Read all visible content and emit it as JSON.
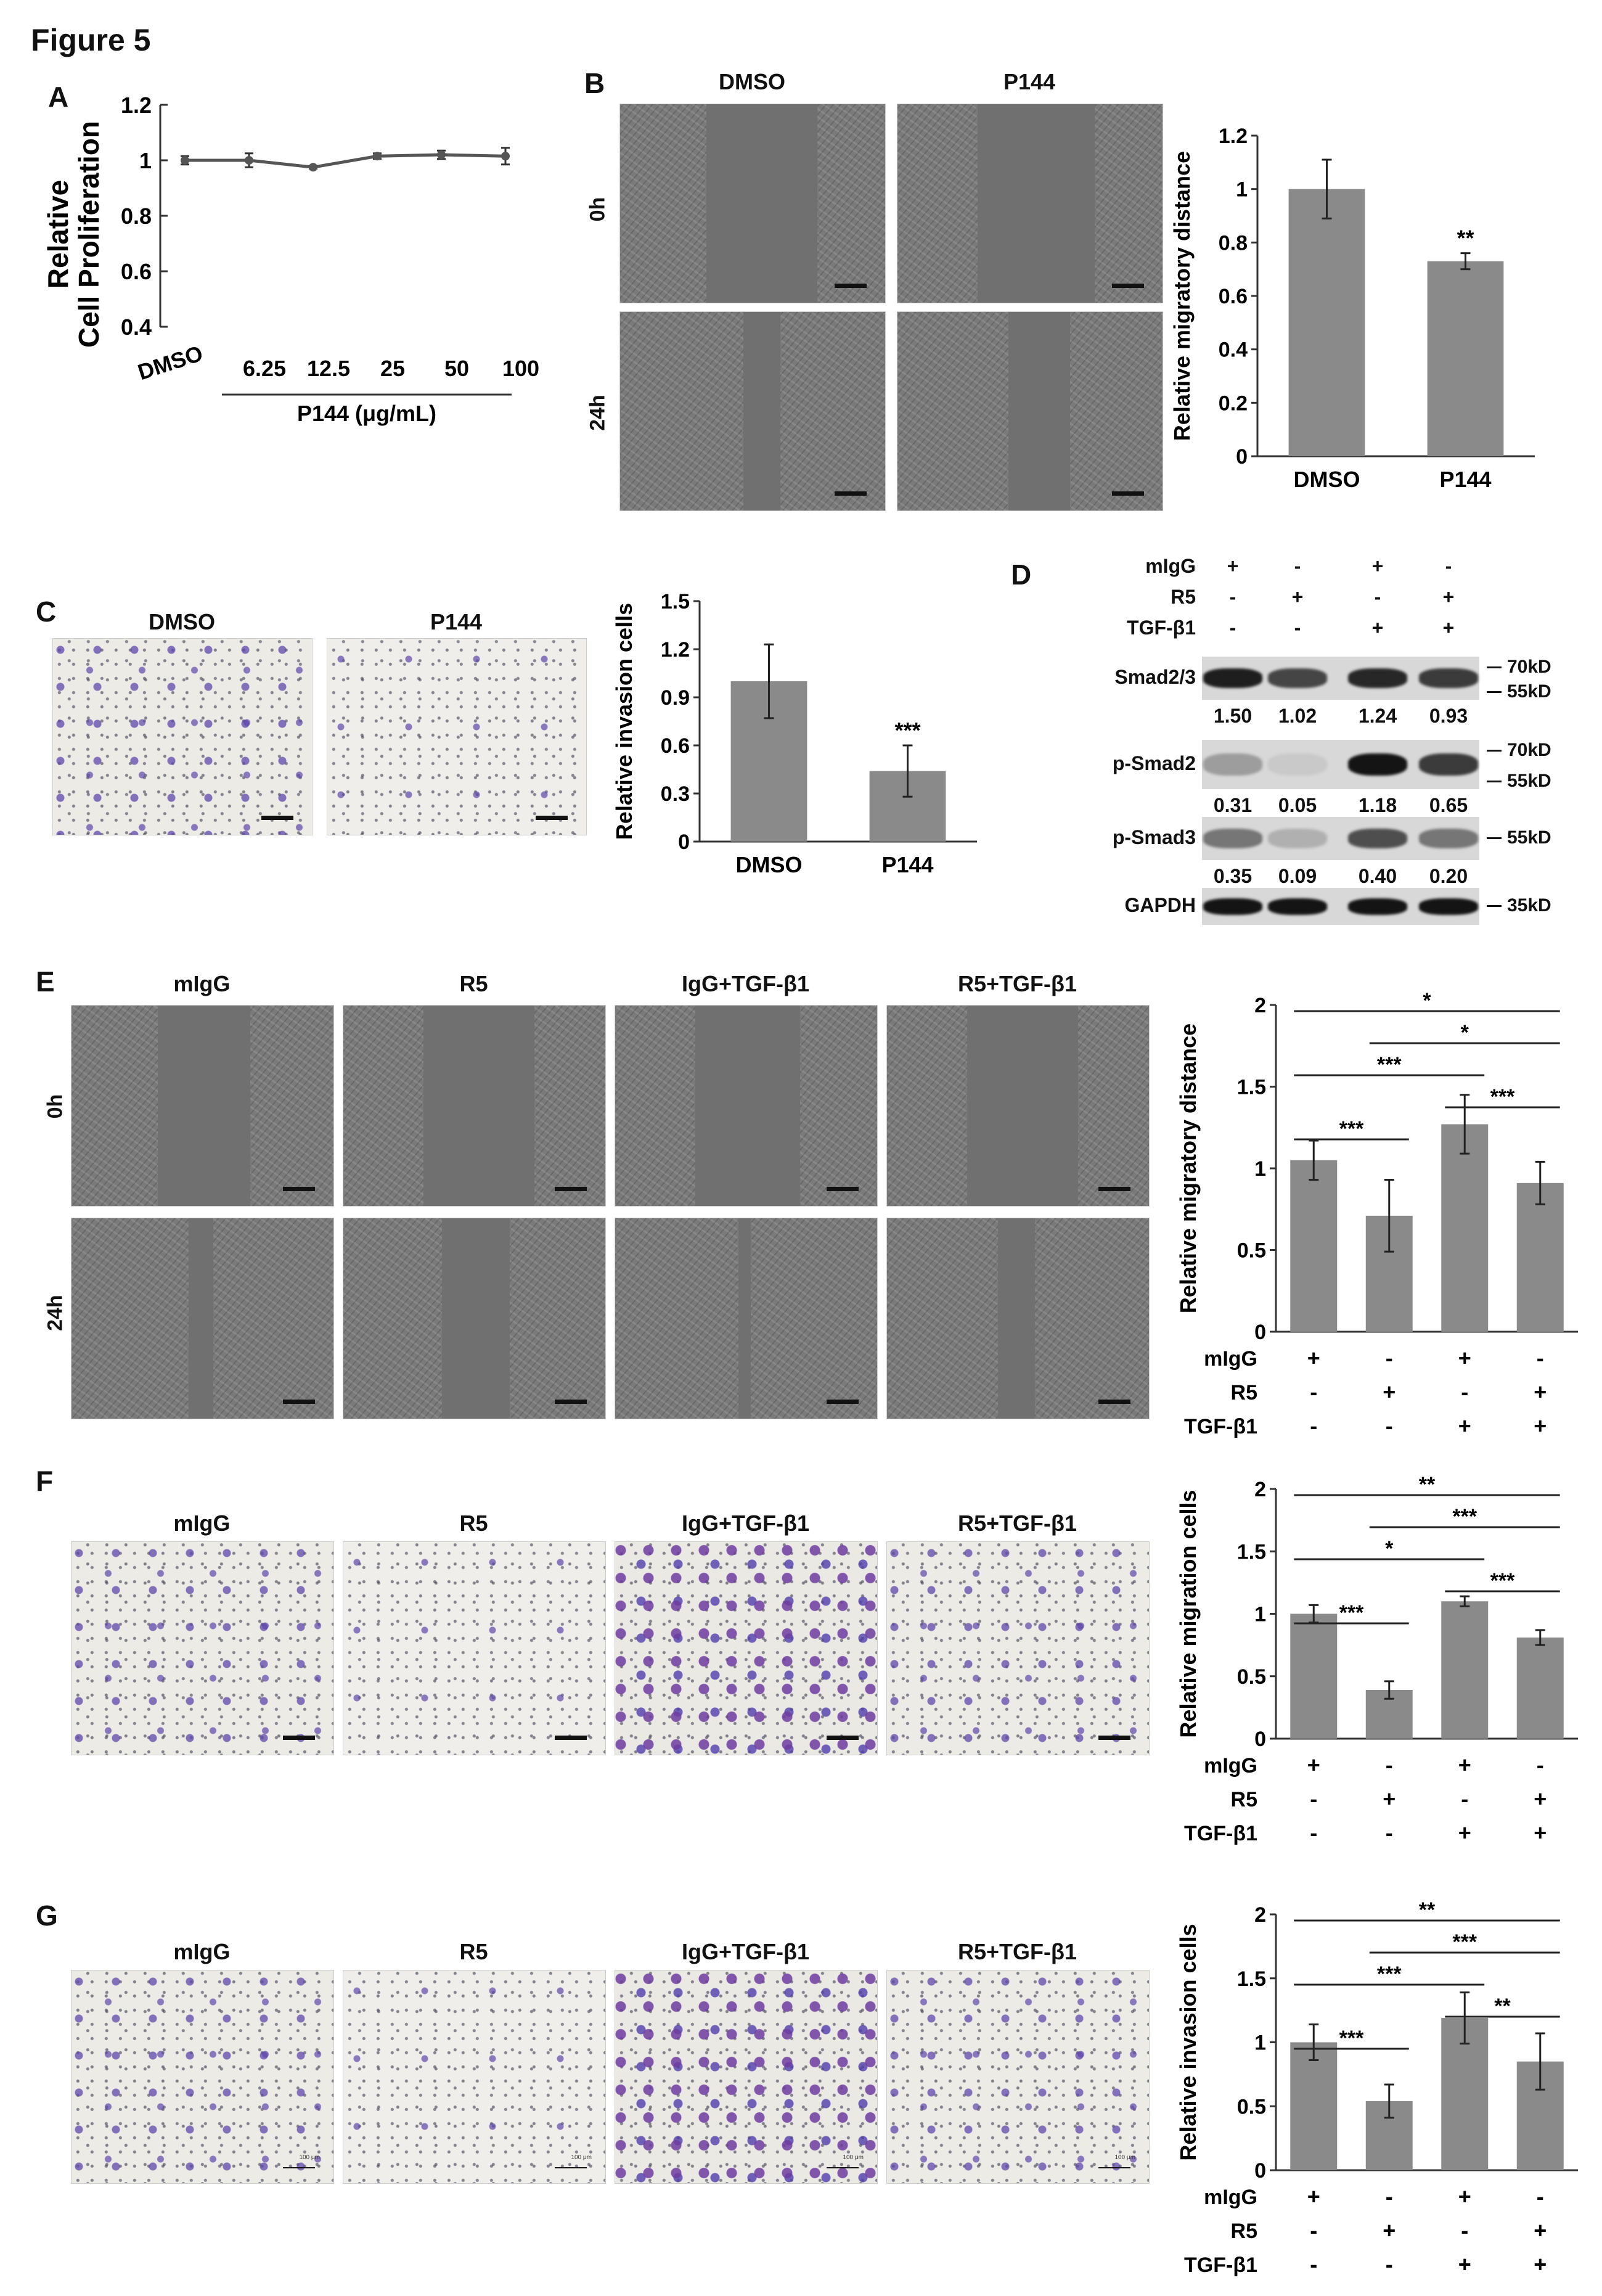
{
  "figure_title": "Figure 5",
  "panel_labels": {
    "A": "A",
    "B": "B",
    "C": "C",
    "D": "D",
    "E": "E",
    "F": "F",
    "G": "G"
  },
  "panel_a": {
    "chart_data": {
      "type": "line",
      "ylabel_line1": "Relative",
      "ylabel_line2": "Cell Proliferation",
      "xlabel": "P144 (μg/mL)",
      "categories": [
        "DMSO",
        "6.25",
        "12.5",
        "25",
        "50",
        "100"
      ],
      "values": [
        1.0,
        1.0,
        0.975,
        1.015,
        1.02,
        1.015
      ],
      "errors": [
        0.015,
        0.025,
        0.005,
        0.01,
        0.015,
        0.03
      ],
      "ylim": [
        0.4,
        1.2
      ],
      "yticks": [
        "0.4",
        "0.6",
        "0.8",
        "1",
        "1.2"
      ],
      "tick_values": [
        0.4,
        0.6,
        0.8,
        1.0,
        1.2
      ]
    }
  },
  "panel_b": {
    "col_headers": [
      "DMSO",
      "P144"
    ],
    "row_headers": [
      "0h",
      "24h"
    ],
    "chart_data": {
      "type": "bar",
      "ylabel": "Relative migratory distance",
      "categories": [
        "DMSO",
        "P144"
      ],
      "values": [
        1.0,
        0.73
      ],
      "errors": [
        0.11,
        0.03
      ],
      "ylim": [
        0,
        1.2
      ],
      "yticks": [
        "0",
        "0.2",
        "0.4",
        "0.6",
        "0.8",
        "1",
        "1.2"
      ],
      "tick_values": [
        0,
        0.2,
        0.4,
        0.6,
        0.8,
        1.0,
        1.2
      ],
      "significance": [
        "",
        "**"
      ]
    }
  },
  "panel_c": {
    "col_headers": [
      "DMSO",
      "P144"
    ],
    "chart_data": {
      "type": "bar",
      "ylabel": "Relative invasion cells",
      "categories": [
        "DMSO",
        "P144"
      ],
      "values": [
        1.0,
        0.44
      ],
      "errors": [
        0.23,
        0.16
      ],
      "ylim": [
        0,
        1.5
      ],
      "yticks": [
        "0",
        "0.3",
        "0.6",
        "0.9",
        "1.2",
        "1.5"
      ],
      "tick_values": [
        0,
        0.3,
        0.6,
        0.9,
        1.2,
        1.5
      ],
      "significance": [
        "",
        "***"
      ]
    }
  },
  "panel_d": {
    "conditions": [
      {
        "label": "mIgG",
        "signs": [
          "+",
          "-",
          "+",
          "-"
        ]
      },
      {
        "label": "R5",
        "signs": [
          "-",
          "+",
          "-",
          "+"
        ]
      },
      {
        "label": "TGF-β1",
        "signs": [
          "-",
          "-",
          "+",
          "+"
        ]
      }
    ],
    "blots": [
      {
        "label": "Smad2/3",
        "markers": [
          "70kD",
          "55kD"
        ],
        "values": [
          "1.50",
          "1.02",
          "1.24",
          "0.93"
        ]
      },
      {
        "label": "p-Smad2",
        "markers": [
          "70kD",
          "55kD"
        ],
        "values": [
          "0.31",
          "0.05",
          "1.18",
          "0.65"
        ]
      },
      {
        "label": "p-Smad3",
        "markers": [
          "55kD"
        ],
        "values": [
          "0.35",
          "0.09",
          "0.40",
          "0.20"
        ]
      },
      {
        "label": "GAPDH",
        "markers": [
          "35kD"
        ],
        "values": []
      }
    ]
  },
  "group_headers": [
    "mIgG",
    "R5",
    "IgG+TGF-β1",
    "R5+TGF-β1"
  ],
  "panel_e": {
    "row_headers": [
      "0h",
      "24h"
    ],
    "chart_data": {
      "type": "bar",
      "ylabel": "Relative migratory distance",
      "values": [
        1.05,
        0.71,
        1.27,
        0.91
      ],
      "errors": [
        0.12,
        0.22,
        0.18,
        0.13
      ],
      "ylim": [
        0,
        2
      ],
      "yticks": [
        "0",
        "0.5",
        "1",
        "1.5",
        "2"
      ],
      "tick_values": [
        0,
        0.5,
        1,
        1.5,
        2
      ],
      "brackets": [
        {
          "from": 0,
          "to": 3,
          "label": "*"
        },
        {
          "from": 1,
          "to": 3,
          "label": "*"
        },
        {
          "from": 0,
          "to": 2,
          "label": "***"
        },
        {
          "from": 2,
          "to": 3,
          "label": "***"
        },
        {
          "from": 0,
          "to": 1,
          "label": "***"
        }
      ]
    }
  },
  "panel_f": {
    "chart_data": {
      "type": "bar",
      "ylabel": "Relative migration cells",
      "values": [
        1.0,
        0.39,
        1.1,
        0.81
      ],
      "errors": [
        0.07,
        0.07,
        0.04,
        0.06
      ],
      "ylim": [
        0,
        2
      ],
      "yticks": [
        "0",
        "0.5",
        "1",
        "1.5",
        "2"
      ],
      "tick_values": [
        0,
        0.5,
        1,
        1.5,
        2
      ],
      "brackets": [
        {
          "from": 0,
          "to": 3,
          "label": "**"
        },
        {
          "from": 1,
          "to": 3,
          "label": "***"
        },
        {
          "from": 2,
          "to": 3,
          "label": "***"
        },
        {
          "from": 0,
          "to": 2,
          "label": "*"
        },
        {
          "from": 0,
          "to": 1,
          "label": "***"
        }
      ]
    }
  },
  "panel_g": {
    "scale_text": "100 μm",
    "chart_data": {
      "type": "bar",
      "ylabel": "Relative invasion cells",
      "values": [
        1.0,
        0.54,
        1.19,
        0.85
      ],
      "errors": [
        0.14,
        0.13,
        0.2,
        0.22
      ],
      "ylim": [
        0,
        2
      ],
      "yticks": [
        "0",
        "0.5",
        "1",
        "1.5",
        "2"
      ],
      "tick_values": [
        0,
        0.5,
        1,
        1.5,
        2
      ],
      "brackets": [
        {
          "from": 0,
          "to": 3,
          "label": "**"
        },
        {
          "from": 1,
          "to": 3,
          "label": "***"
        },
        {
          "from": 0,
          "to": 2,
          "label": "***"
        },
        {
          "from": 2,
          "to": 3,
          "label": "**"
        },
        {
          "from": 0,
          "to": 1,
          "label": "***"
        }
      ]
    }
  },
  "treatment_table": [
    {
      "label": "mIgG",
      "signs": [
        "+",
        "-",
        "+",
        "-"
      ]
    },
    {
      "label": "R5",
      "signs": [
        "-",
        "+",
        "-",
        "+"
      ]
    },
    {
      "label": "TGF-β1",
      "signs": [
        "-",
        "-",
        "+",
        "+"
      ]
    }
  ]
}
